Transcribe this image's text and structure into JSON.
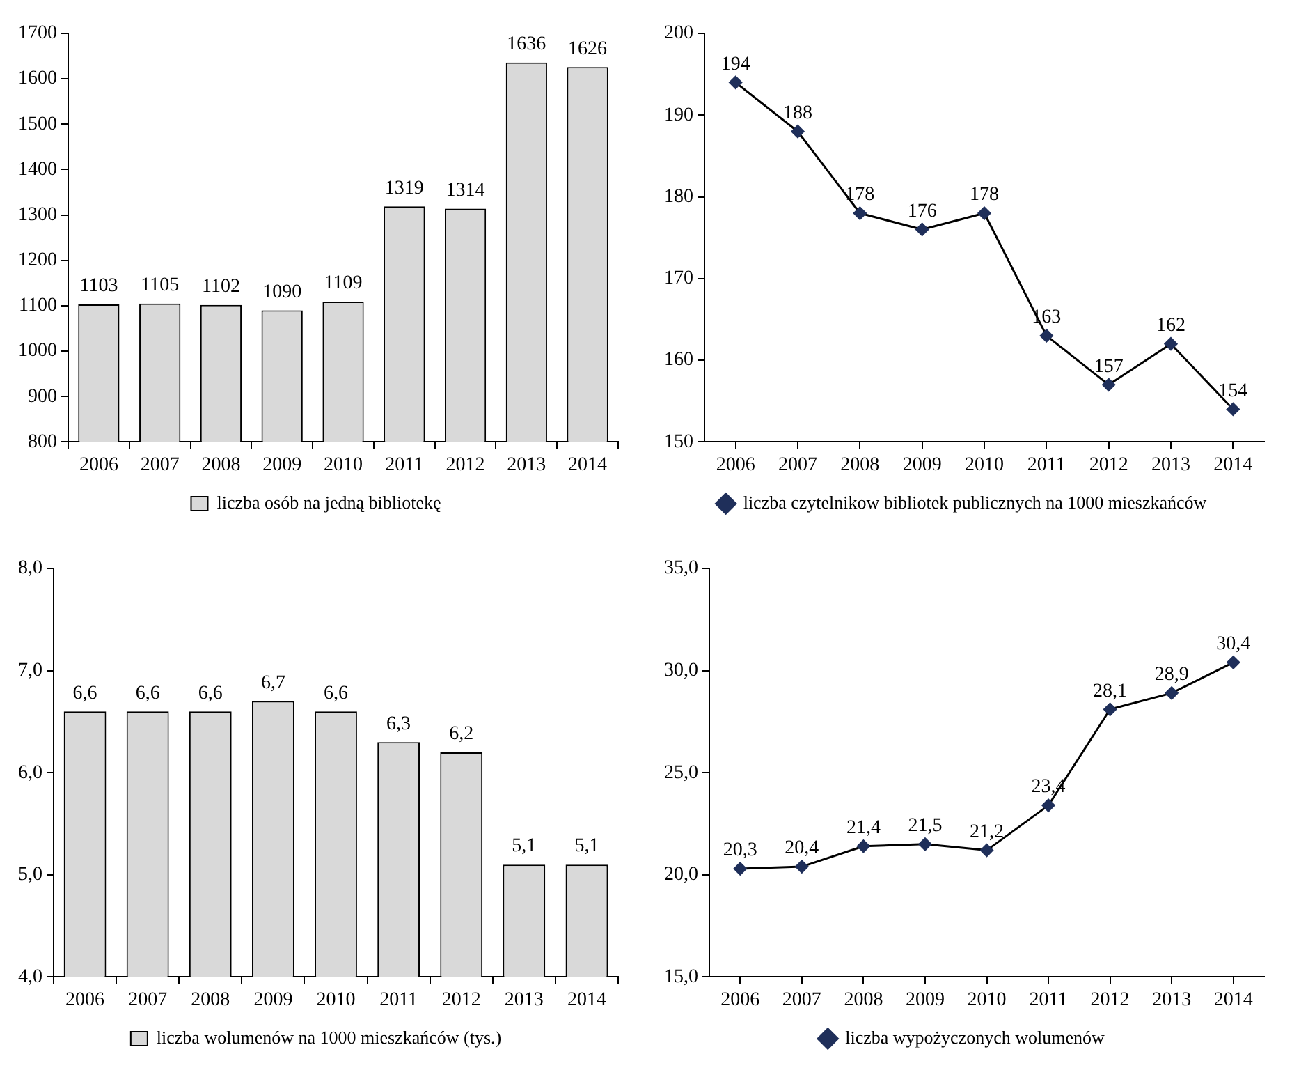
{
  "chart_data": [
    {
      "type": "bar",
      "categories": [
        "2006",
        "2007",
        "2008",
        "2009",
        "2010",
        "2011",
        "2012",
        "2013",
        "2014"
      ],
      "series": [
        {
          "name": "liczba osób na jedną bibliotekę",
          "color": "#d9d9d9",
          "values": [
            1103,
            1105,
            1102,
            1090,
            1109,
            1319,
            1314,
            1636,
            1626
          ]
        }
      ],
      "ylim": [
        800,
        1700
      ],
      "yticks": [
        800,
        900,
        1000,
        1100,
        1200,
        1300,
        1400,
        1500,
        1600,
        1700
      ],
      "data_labels": true,
      "grid": false,
      "legend": "bottom"
    },
    {
      "type": "line",
      "categories": [
        "2006",
        "2007",
        "2008",
        "2009",
        "2010",
        "2011",
        "2012",
        "2013",
        "2014"
      ],
      "series": [
        {
          "name": "liczba czytelnikow bibliotek publicznych na 1000 mieszkańców",
          "color": "#000000",
          "values": [
            194,
            188,
            178,
            176,
            178,
            163,
            157,
            162,
            154
          ]
        }
      ],
      "ylim": [
        150,
        200
      ],
      "yticks": [
        150,
        160,
        170,
        180,
        190,
        200
      ],
      "data_labels": true,
      "grid": false,
      "legend": "bottom",
      "marker": "diamond",
      "line_style": "solid"
    },
    {
      "type": "bar",
      "categories": [
        "2006",
        "2007",
        "2008",
        "2009",
        "2010",
        "2011",
        "2012",
        "2013",
        "2014"
      ],
      "series": [
        {
          "name": "liczba wolumenów na 1000 mieszkańców (tys.)",
          "color": "#d9d9d9",
          "values": [
            6.6,
            6.6,
            6.6,
            6.7,
            6.6,
            6.3,
            6.2,
            5.1,
            5.1
          ],
          "value_labels": [
            "6,6",
            "6,6",
            "6,6",
            "6,7",
            "6,6",
            "6,3",
            "6,2",
            "5,1",
            "5,1"
          ]
        }
      ],
      "ylim": [
        4,
        8
      ],
      "yticks": [
        {
          "value": 4,
          "label": "4,0"
        },
        {
          "value": 5,
          "label": "5,0"
        },
        {
          "value": 6,
          "label": "6,0"
        },
        {
          "value": 7,
          "label": "7,0"
        },
        {
          "value": 8,
          "label": "8,0"
        }
      ],
      "grid": false,
      "legend": "bottom"
    },
    {
      "type": "line",
      "categories": [
        "2006",
        "2007",
        "2008",
        "2009",
        "2010",
        "2011",
        "2012",
        "2013",
        "2014"
      ],
      "series": [
        {
          "name": "liczba wypożyczonych wolumenów",
          "color": "#000000",
          "values": [
            20.3,
            20.4,
            21.4,
            21.5,
            21.2,
            23.4,
            28.1,
            28.9,
            30.4
          ],
          "value_labels": [
            "20,3",
            "20,4",
            "21,4",
            "21,5",
            "21,2",
            "23,4",
            "28,1",
            "28,9",
            "30,4"
          ]
        }
      ],
      "ylim": [
        15,
        35
      ],
      "yticks": [
        {
          "value": 15,
          "label": "15,0"
        },
        {
          "value": 20,
          "label": "20,0"
        },
        {
          "value": 25,
          "label": "25,0"
        },
        {
          "value": 30,
          "label": "30,0"
        },
        {
          "value": 35,
          "label": "35,0"
        }
      ],
      "grid": false,
      "legend": "bottom",
      "marker": "diamond",
      "line_style": "solid"
    }
  ]
}
